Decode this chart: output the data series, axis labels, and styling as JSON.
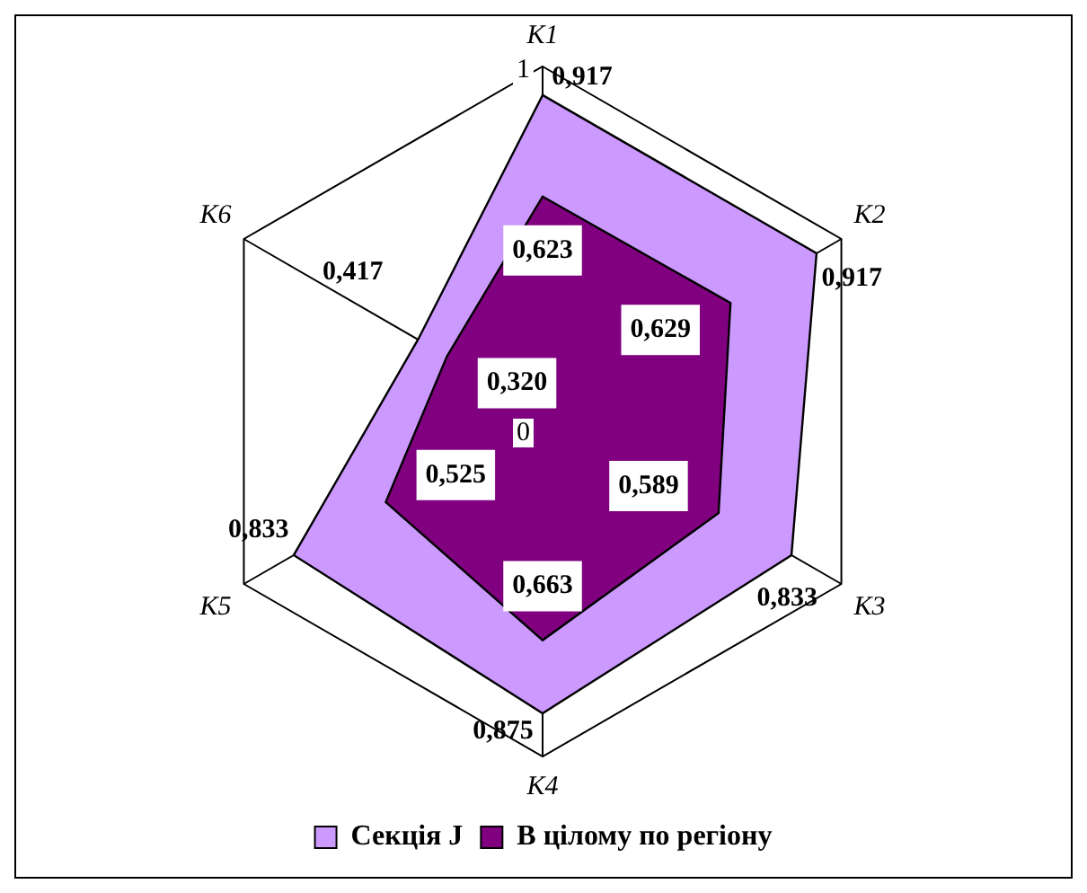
{
  "chart_data": {
    "type": "radar",
    "categories": [
      "K1",
      "K2",
      "K3",
      "K4",
      "K5",
      "K6"
    ],
    "series": [
      {
        "name": "Секція J",
        "color": "#cc99ff",
        "values": [
          0.917,
          0.917,
          0.833,
          0.875,
          0.833,
          0.417
        ],
        "value_labels": [
          "0,917",
          "0,917",
          "0,833",
          "0,875",
          "0,833",
          "0,417"
        ]
      },
      {
        "name": "В цілому по регіону",
        "color": "#800080",
        "values": [
          0.623,
          0.629,
          0.589,
          0.663,
          0.525,
          0.32
        ],
        "value_labels": [
          "0,623",
          "0,629",
          "0,589",
          "0,663",
          "0,525",
          "0,320"
        ]
      }
    ],
    "ylim": [
      0,
      1
    ],
    "yticks": [
      0,
      1
    ],
    "grid": true,
    "legend": "bottom",
    "marker": "none"
  }
}
